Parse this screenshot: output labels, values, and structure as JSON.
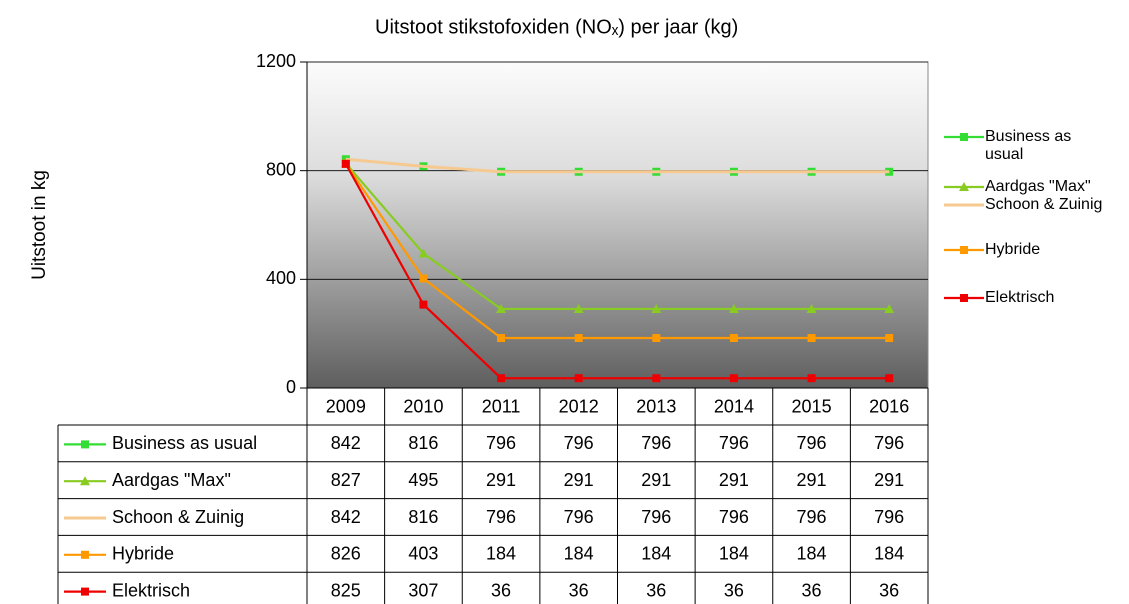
{
  "chart_data": {
    "type": "line",
    "title": "Uitstoot stikstofoxiden (NOₓ) per jaar (kg)",
    "y_label": "Uitstoot in kg",
    "categories": [
      "2009",
      "2010",
      "2011",
      "2012",
      "2013",
      "2014",
      "2015",
      "2016"
    ],
    "ylim": [
      0,
      1200
    ],
    "yticks": [
      0,
      400,
      800,
      1200
    ],
    "grid": true,
    "legend": "right",
    "data_table": true,
    "series": [
      {
        "name": "Business as usual",
        "color": "#33dd33",
        "marker": "square",
        "values": [
          842,
          816,
          796,
          796,
          796,
          796,
          796,
          796
        ]
      },
      {
        "name": "Aardgas \"Max\"",
        "color": "#88cc22",
        "marker": "triangle",
        "values": [
          827,
          495,
          291,
          291,
          291,
          291,
          291,
          291
        ]
      },
      {
        "name": "Schoon & Zuinig",
        "color": "#f5c98f",
        "marker": "none",
        "values": [
          842,
          816,
          796,
          796,
          796,
          796,
          796,
          796
        ]
      },
      {
        "name": "Hybride",
        "color": "#ff9900",
        "marker": "square",
        "values": [
          826,
          403,
          184,
          184,
          184,
          184,
          184,
          184
        ]
      },
      {
        "name": "Elektrisch",
        "color": "#ee0000",
        "marker": "square",
        "values": [
          825,
          307,
          36,
          36,
          36,
          36,
          36,
          36
        ]
      }
    ]
  }
}
